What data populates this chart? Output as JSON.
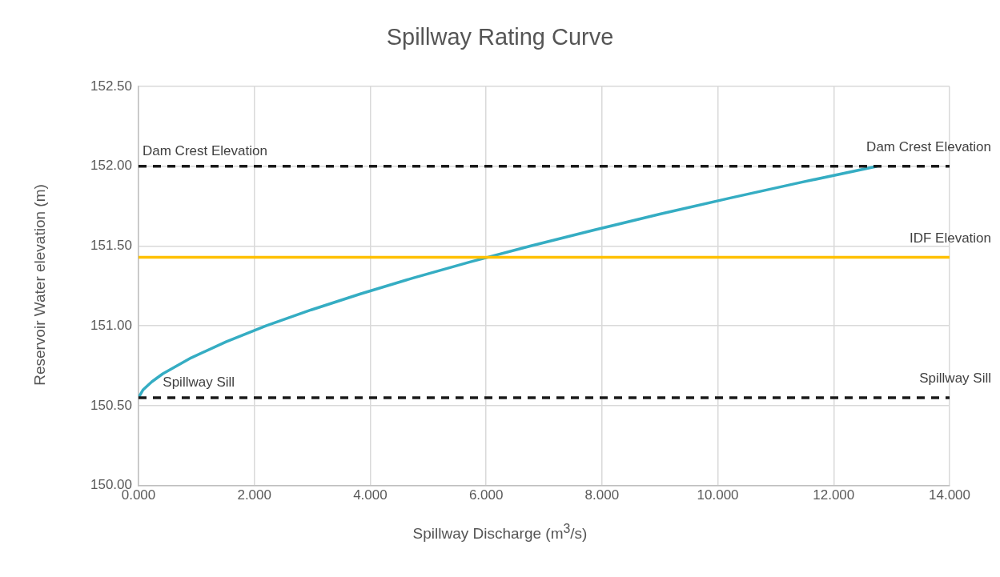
{
  "chart_data": {
    "type": "line",
    "title": "Spillway Rating Curve",
    "xlabel": "Spillway Discharge (m$^{3}$/s)",
    "ylabel": "Reservoir Water elevation (m)",
    "series": [
      {
        "color": "#35adc3",
        "x": [
          0,
          0.08,
          0.23,
          0.42,
          0.91,
          1.51,
          2.2,
          2.98,
          3.83,
          4.74,
          5.72,
          6.76,
          7.86,
          9.0,
          10.2,
          11.45,
          12.75
        ],
        "values": [
          150.55,
          150.6,
          150.65,
          150.7,
          150.8,
          150.9,
          151.0,
          151.1,
          151.2,
          151.3,
          151.4,
          151.5,
          151.6,
          151.7,
          151.8,
          151.9,
          152.0
        ]
      }
    ],
    "xlim": [
      0,
      14
    ],
    "xticks": [
      {
        "value": 0,
        "label": "0.000"
      },
      {
        "value": 2,
        "label": "2.000"
      },
      {
        "value": 4,
        "label": "4.000"
      },
      {
        "value": 6,
        "label": "6.000"
      },
      {
        "value": 8,
        "label": "8.000"
      },
      {
        "value": 10,
        "label": "10.000"
      },
      {
        "value": 12,
        "label": "12.000"
      },
      {
        "value": 14,
        "label": "14.000"
      }
    ],
    "ylim": [
      150,
      152.5
    ],
    "yticks": [
      {
        "value": 150,
        "label": "150.00"
      },
      {
        "value": 150.5,
        "label": "150.50"
      },
      {
        "value": 151,
        "label": "151.00"
      },
      {
        "value": 151.5,
        "label": "151.50"
      },
      {
        "value": 152,
        "label": "152.00"
      },
      {
        "value": 152.5,
        "label": "152.50"
      }
    ],
    "ref_lines": [
      {
        "axis": "y",
        "value": 152.0,
        "label": "Dam Crest Elevation",
        "color": "#1a1a1a",
        "line_style": "dashed"
      },
      {
        "axis": "y",
        "value": 151.43,
        "label": "IDF Elevation",
        "color": "#ffc000",
        "line_style": "solid"
      },
      {
        "axis": "y",
        "value": 150.55,
        "label": "Spillway Sill",
        "color": "#1a1a1a",
        "line_style": "dashed"
      }
    ],
    "annotations": [
      {
        "text": "Dam Crest Elevation",
        "x": 0,
        "y": 152.0
      },
      {
        "text": "Spillway Sill",
        "x": 0.35,
        "y": 150.55
      }
    ],
    "grid": true,
    "legend": false,
    "marker": "none",
    "line_style": "solid"
  }
}
